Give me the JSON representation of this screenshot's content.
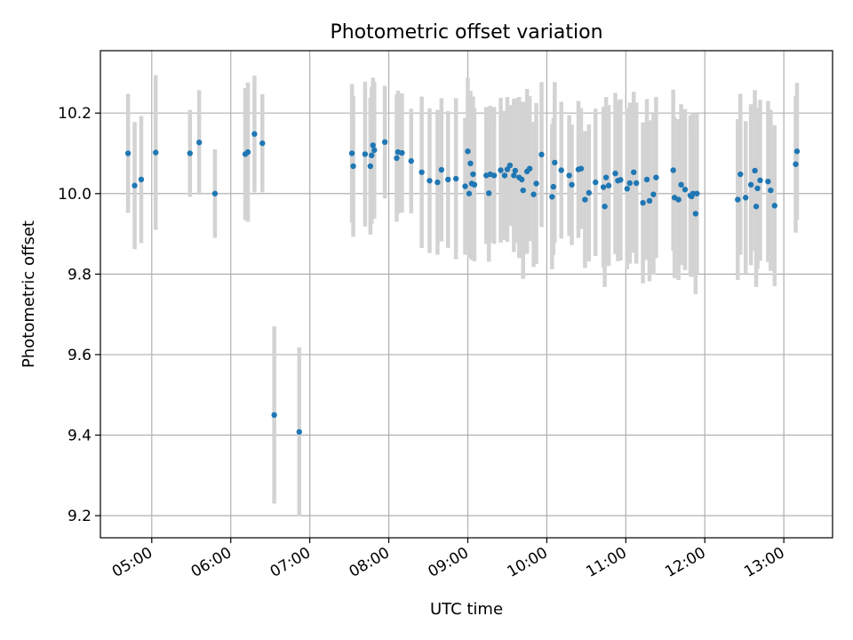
{
  "colors": {
    "point": "#1f77b4",
    "errorbar": "#d3d3d3"
  },
  "chart_data": {
    "type": "scatter",
    "title": "Photometric offset variation",
    "xlabel": "UTC time",
    "ylabel": "Photometric offset",
    "xlim": [
      "04:21",
      "13:37"
    ],
    "ylim": [
      9.145,
      10.355
    ],
    "grid": true,
    "x_ticks": [
      "05:00",
      "06:00",
      "07:00",
      "08:00",
      "09:00",
      "10:00",
      "11:00",
      "12:00",
      "13:00"
    ],
    "y_ticks": [
      "9.2",
      "9.4",
      "9.6",
      "9.8",
      "10.0",
      "10.2"
    ],
    "series": [
      {
        "x": [
          "04:42",
          "04:47",
          "04:52",
          "05:03",
          "05:29",
          "05:36",
          "05:48",
          "06:11",
          "06:13",
          "06:18",
          "06:24",
          "06:33",
          "06:52",
          "07:32",
          "07:33",
          "07:42",
          "07:46",
          "07:47",
          "07:48",
          "07:49",
          "07:57",
          "08:06",
          "08:07",
          "08:10",
          "08:17",
          "08:25",
          "08:31",
          "08:37",
          "08:40",
          "08:45",
          "08:51",
          "08:58",
          "09:00",
          "09:01",
          "09:02",
          "09:03",
          "09:04",
          "09:05",
          "09:14",
          "09:16",
          "09:17",
          "09:20",
          "09:25",
          "09:28",
          "09:30",
          "09:32",
          "09:35",
          "09:36",
          "09:39",
          "09:41",
          "09:42",
          "09:45",
          "09:47",
          "09:50",
          "09:52",
          "09:56",
          "10:04",
          "10:05",
          "10:06",
          "10:11",
          "10:17",
          "10:19",
          "10:24",
          "10:26",
          "10:29",
          "10:32",
          "10:37",
          "10:43",
          "10:44",
          "10:45",
          "10:47",
          "10:52",
          "10:54",
          "10:56",
          "11:01",
          "11:03",
          "11:06",
          "11:08",
          "11:13",
          "11:16",
          "11:18",
          "11:21",
          "11:23",
          "11:36",
          "11:37",
          "11:40",
          "11:42",
          "11:45",
          "11:49",
          "11:50",
          "11:51",
          "11:53",
          "11:54",
          "12:25",
          "12:27",
          "12:31",
          "12:35",
          "12:38",
          "12:39",
          "12:40",
          "12:42",
          "12:48",
          "12:50",
          "12:53",
          "13:09",
          "13:10"
        ],
        "y": [
          10.1,
          10.02,
          10.035,
          10.102,
          10.1,
          10.127,
          10.0,
          10.098,
          10.103,
          10.148,
          10.125,
          9.45,
          9.408,
          10.1,
          10.068,
          10.098,
          10.068,
          10.095,
          10.12,
          10.108,
          10.128,
          10.088,
          10.103,
          10.101,
          10.081,
          10.053,
          10.032,
          10.028,
          10.059,
          10.035,
          10.037,
          10.018,
          10.105,
          10.0,
          10.075,
          10.025,
          10.048,
          10.022,
          10.045,
          10.001,
          10.048,
          10.045,
          10.058,
          10.045,
          10.06,
          10.07,
          10.045,
          10.057,
          10.04,
          10.035,
          10.008,
          10.055,
          10.062,
          9.998,
          10.025,
          10.097,
          9.992,
          10.017,
          10.077,
          10.058,
          10.045,
          10.022,
          10.06,
          10.062,
          9.985,
          10.002,
          10.028,
          10.016,
          9.968,
          10.04,
          10.02,
          10.05,
          10.032,
          10.034,
          10.012,
          10.026,
          10.053,
          10.026,
          9.977,
          10.035,
          9.982,
          9.998,
          10.04,
          10.058,
          9.99,
          9.985,
          10.022,
          10.01,
          9.995,
          9.993,
          10.0,
          9.95,
          10.0,
          9.985,
          10.048,
          9.99,
          10.022,
          10.057,
          9.968,
          10.013,
          10.033,
          10.03,
          10.008,
          9.97,
          10.073,
          10.105
        ],
        "error": [
          0.148,
          0.158,
          0.158,
          0.192,
          0.108,
          0.13,
          0.11,
          0.164,
          0.173,
          0.145,
          0.122,
          0.22,
          0.21,
          0.172,
          0.175,
          0.18,
          0.17,
          0.17,
          0.168,
          0.17,
          0.14,
          0.158,
          0.153,
          0.148,
          0.13,
          0.188,
          0.18,
          0.18,
          0.178,
          0.17,
          0.2,
          0.17,
          0.183,
          0.16,
          0.18,
          0.19,
          0.193,
          0.19,
          0.17,
          0.17,
          0.17,
          0.17,
          0.18,
          0.16,
          0.18,
          0.15,
          0.19,
          0.18,
          0.2,
          0.16,
          0.22,
          0.205,
          0.18,
          0.18,
          0.2,
          0.18,
          0.18,
          0.17,
          0.2,
          0.17,
          0.15,
          0.15,
          0.17,
          0.15,
          0.17,
          0.17,
          0.183,
          0.2,
          0.2,
          0.2,
          0.2,
          0.2,
          0.2,
          0.2,
          0.2,
          0.2,
          0.2,
          0.2,
          0.2,
          0.2,
          0.2,
          0.2,
          0.2,
          0.2,
          0.2,
          0.2,
          0.2,
          0.2,
          0.2,
          0.2,
          0.2,
          0.2,
          0.2,
          0.2,
          0.2,
          0.19,
          0.2,
          0.2,
          0.2,
          0.2,
          0.2,
          0.2,
          0.2,
          0.2,
          0.17,
          0.17
        ]
      }
    ]
  }
}
